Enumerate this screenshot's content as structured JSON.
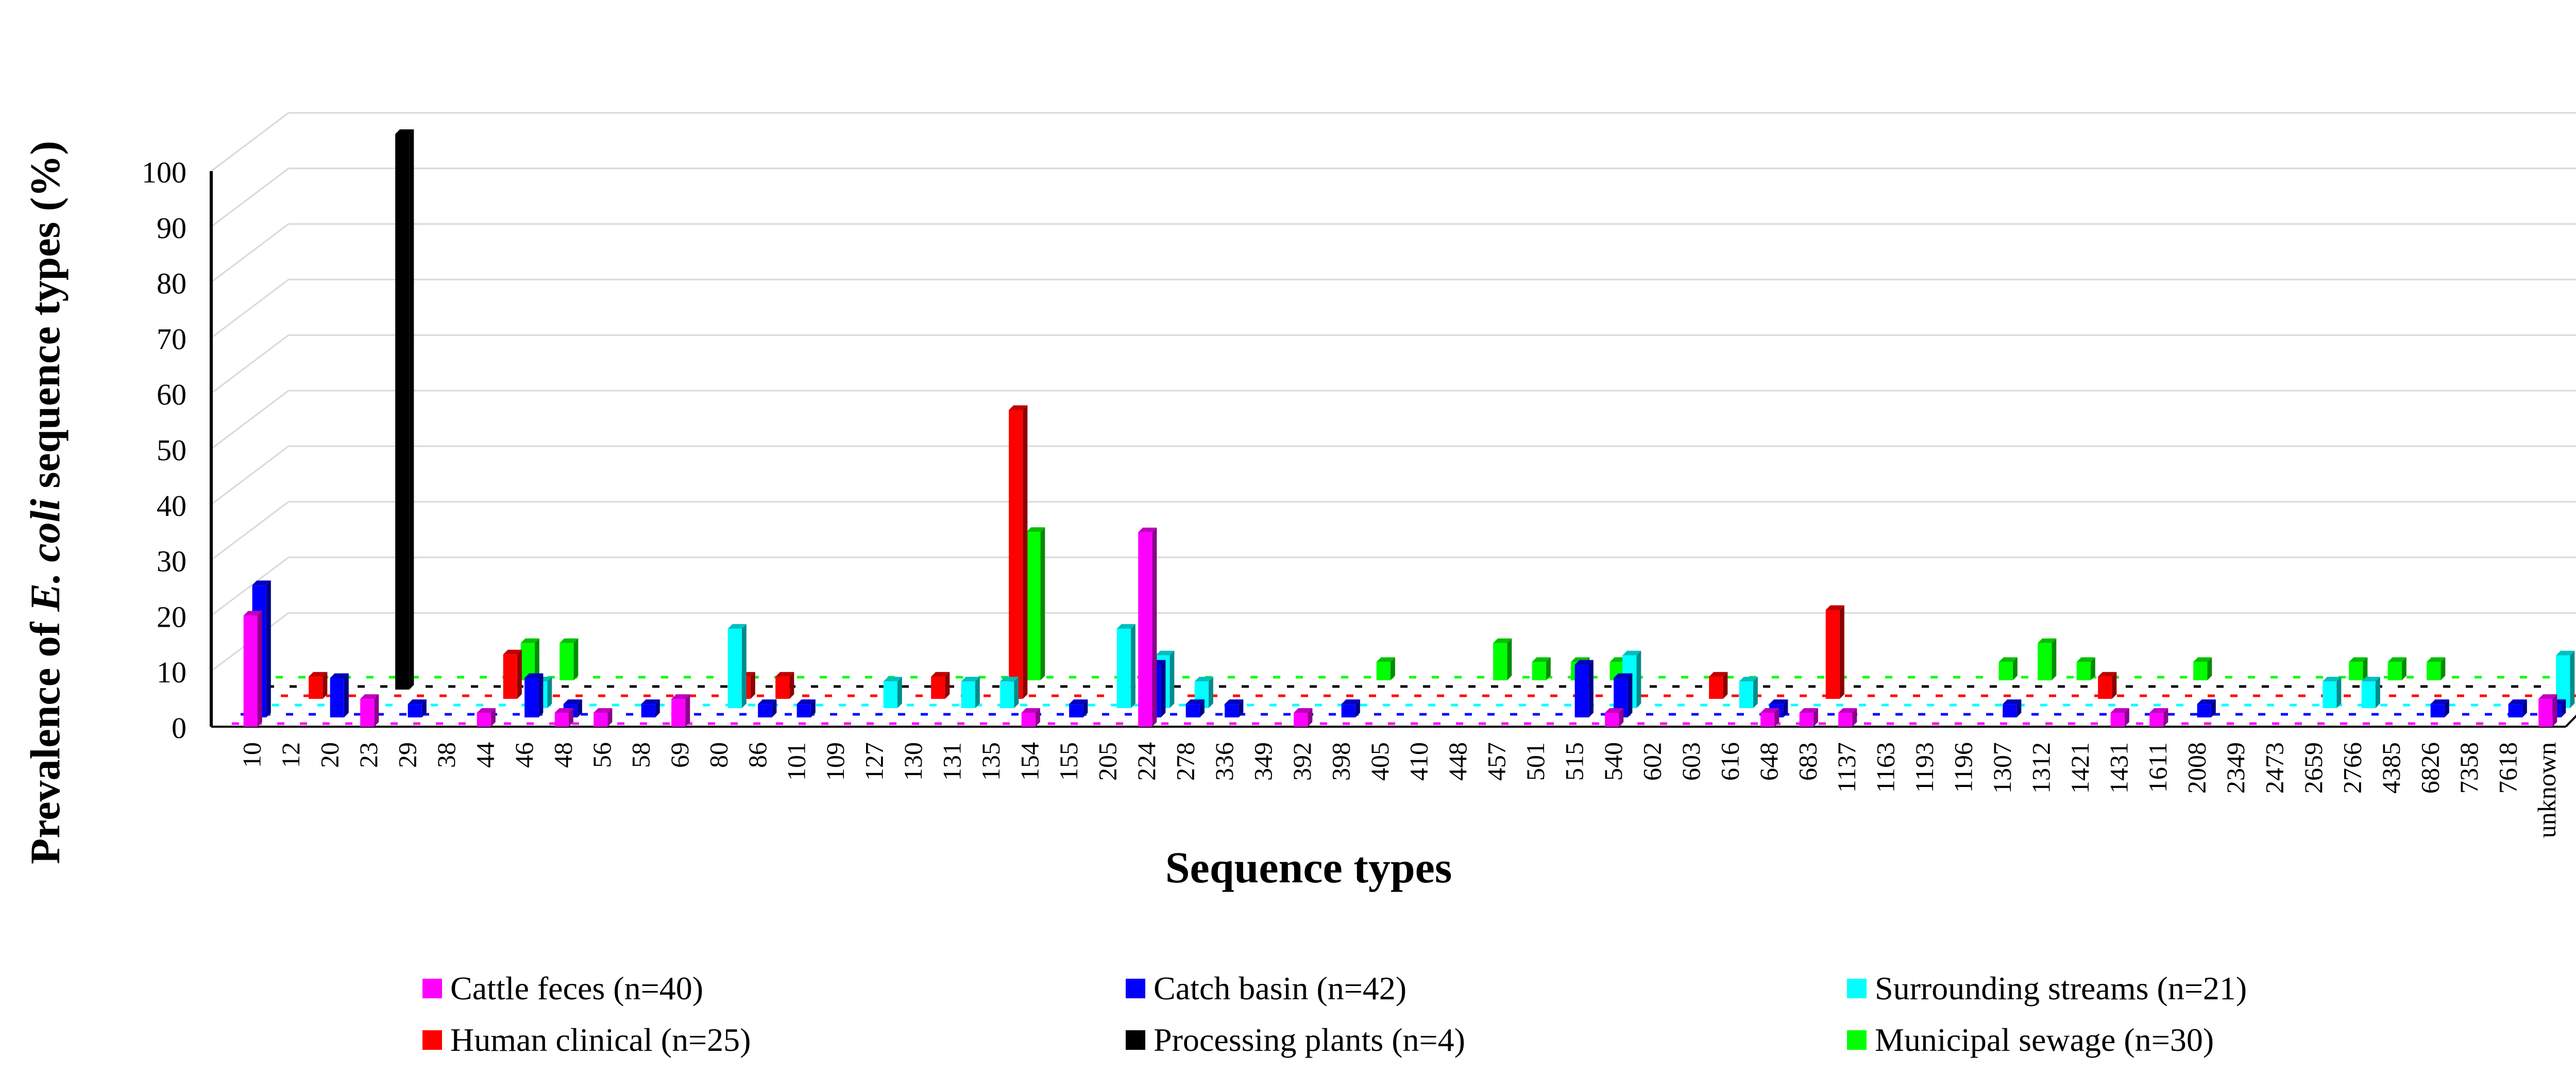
{
  "chart_data": {
    "type": "bar",
    "title": "",
    "ylabel_parts": [
      "Prevalence of ",
      "E. coli",
      " sequence types (%)"
    ],
    "xlabel": "Sequence types",
    "ylim": [
      0,
      100
    ],
    "yticks": [
      0,
      10,
      20,
      30,
      40,
      50,
      60,
      70,
      80,
      90,
      100
    ],
    "grid": true,
    "legend_position": "bottom",
    "categories": [
      "10",
      "12",
      "20",
      "23",
      "29",
      "38",
      "44",
      "46",
      "48",
      "56",
      "58",
      "69",
      "80",
      "86",
      "101",
      "109",
      "127",
      "130",
      "131",
      "135",
      "154",
      "155",
      "205",
      "224",
      "278",
      "336",
      "349",
      "392",
      "398",
      "405",
      "410",
      "448",
      "457",
      "501",
      "515",
      "540",
      "602",
      "603",
      "616",
      "648",
      "683",
      "1137",
      "1163",
      "1193",
      "1196",
      "1307",
      "1312",
      "1421",
      "1431",
      "1611",
      "2008",
      "2349",
      "2473",
      "2659",
      "2766",
      "4385",
      "6826",
      "7358",
      "7618",
      "unknown"
    ],
    "series": [
      {
        "name": "Cattle feces (n=40)",
        "color": "#ff00ff",
        "values": [
          20,
          0,
          0,
          5,
          0,
          0,
          2.5,
          0,
          2.5,
          2.5,
          0,
          5,
          0,
          0,
          0,
          0,
          0,
          0,
          0,
          0,
          2.5,
          0,
          0,
          35,
          0,
          0,
          0,
          2.5,
          0,
          0,
          0,
          0,
          0,
          0,
          0,
          2.5,
          0,
          0,
          0,
          2.5,
          2.5,
          2.5,
          0,
          0,
          0,
          0,
          0,
          0,
          2.5,
          2.5,
          0,
          0,
          0,
          0,
          0,
          0,
          0,
          0,
          0,
          5
        ]
      },
      {
        "name": "Catch basin (n=42)",
        "color": "#0000ff",
        "values": [
          23.8,
          0,
          7.1,
          0,
          2.4,
          0,
          0,
          7.1,
          2.4,
          0,
          2.4,
          0,
          0,
          2.4,
          2.4,
          0,
          0,
          0,
          0,
          0,
          0,
          2.4,
          0,
          9.5,
          2.4,
          2.4,
          0,
          0,
          2.4,
          0,
          0,
          0,
          0,
          0,
          9.5,
          7.1,
          0,
          0,
          0,
          2.4,
          0,
          0,
          0,
          0,
          0,
          2.4,
          0,
          0,
          0,
          0,
          2.4,
          0,
          0,
          0,
          0,
          0,
          2.4,
          0,
          2.4,
          2.4
        ]
      },
      {
        "name": "Surrounding streams (n=21)",
        "color": "#00ffff",
        "values": [
          0,
          0,
          0,
          0,
          0,
          0,
          0,
          4.8,
          0,
          0,
          0,
          0,
          14.3,
          0,
          0,
          0,
          4.8,
          0,
          4.8,
          4.8,
          0,
          0,
          14.3,
          9.5,
          4.8,
          0,
          0,
          0,
          0,
          0,
          0,
          0,
          0,
          0,
          0,
          9.5,
          0,
          0,
          4.8,
          0,
          0,
          0,
          0,
          0,
          0,
          0,
          0,
          0,
          0,
          0,
          0,
          0,
          0,
          4.8,
          4.8,
          0,
          0,
          0,
          0,
          9.5
        ]
      },
      {
        "name": "Human clinical (n=25)",
        "color": "#ff0000",
        "values": [
          0,
          4,
          0,
          0,
          0,
          0,
          8,
          0,
          0,
          0,
          0,
          0,
          4,
          4,
          0,
          0,
          0,
          4,
          0,
          52,
          0,
          0,
          0,
          0,
          0,
          0,
          0,
          0,
          0,
          0,
          0,
          0,
          0,
          0,
          0,
          0,
          0,
          4,
          0,
          0,
          16,
          0,
          0,
          0,
          0,
          0,
          0,
          4,
          0,
          0,
          0,
          0,
          0,
          0,
          0,
          0,
          0,
          0,
          0,
          0
        ]
      },
      {
        "name": "Processing plants (n=4)",
        "color": "#000000",
        "values": [
          0,
          0,
          0,
          100,
          0,
          0,
          0,
          0,
          0,
          0,
          0,
          0,
          0,
          0,
          0,
          0,
          0,
          0,
          0,
          0,
          0,
          0,
          0,
          0,
          0,
          0,
          0,
          0,
          0,
          0,
          0,
          0,
          0,
          0,
          0,
          0,
          0,
          0,
          0,
          0,
          0,
          0,
          0,
          0,
          0,
          0,
          0,
          0,
          0,
          0,
          0,
          0,
          0,
          0,
          0,
          0,
          0,
          0,
          0,
          0
        ]
      },
      {
        "name": "Municipal sewage (n=30)",
        "color": "#00ff00",
        "values": [
          0,
          0,
          0,
          0,
          0,
          0,
          6.7,
          6.7,
          0,
          0,
          0,
          0,
          0,
          0,
          0,
          0,
          0,
          0,
          0,
          26.7,
          0,
          0,
          0,
          0,
          0,
          0,
          0,
          0,
          3.3,
          0,
          0,
          6.7,
          3.3,
          3.3,
          3.3,
          0,
          0,
          0,
          0,
          0,
          0,
          0,
          0,
          0,
          3.3,
          6.7,
          3.3,
          0,
          0,
          3.3,
          0,
          0,
          0,
          3.3,
          3.3,
          3.3,
          0,
          0,
          0,
          3.3
        ]
      }
    ]
  }
}
